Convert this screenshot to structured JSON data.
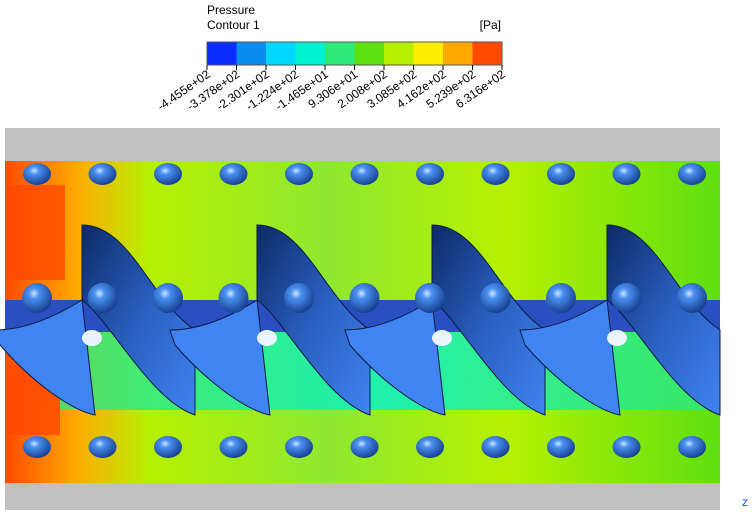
{
  "legend": {
    "title": "Pressure",
    "subtitle": "Contour 1",
    "unit": "[Pa]",
    "labels": [
      "-4.455e+02",
      "-3.378e+02",
      "-2.301e+02",
      "-1.224e+02",
      "-1.465e+01",
      "9.306e+01",
      "2.008e+02",
      "3.085e+02",
      "4.162e+02",
      "5.239e+02",
      "6.316e+02"
    ],
    "colors": [
      "#0a2cff",
      "#0a8cf0",
      "#00d8ff",
      "#00f2d0",
      "#2ee87a",
      "#5ee010",
      "#b6f000",
      "#ffee00",
      "#ffaa00",
      "#ff4a00"
    ]
  },
  "axis": {
    "label": "z"
  }
}
